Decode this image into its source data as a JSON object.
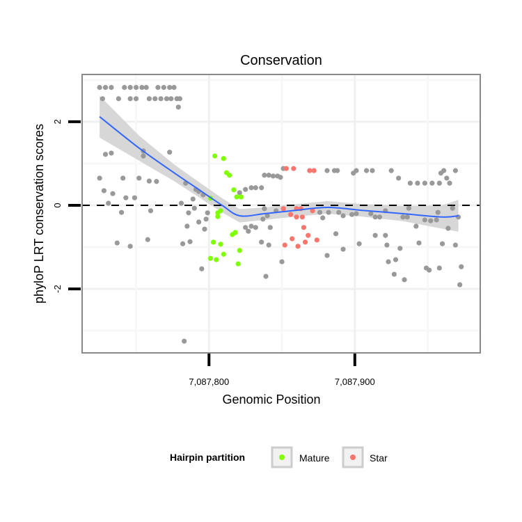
{
  "chart_data": {
    "type": "scatter",
    "title": "Conservation",
    "xlabel": "Genomic Position",
    "ylabel": "phyloP LRT conservation scores",
    "xlim": [
      7087713,
      7087986
    ],
    "ylim": [
      -3.53,
      3.13
    ],
    "x_ticks": [
      {
        "value": 7087800,
        "label": "7,087,800"
      },
      {
        "value": 7087900,
        "label": "7,087,900"
      }
    ],
    "y_ticks": [
      {
        "value": -2,
        "label": "-2"
      },
      {
        "value": 0,
        "label": "0"
      },
      {
        "value": 2,
        "label": "2"
      }
    ],
    "grid": true,
    "reference_line": {
      "y": 0,
      "style": "dashed"
    },
    "legend": {
      "title": "Hairpin partition",
      "placement": "bottom",
      "entries": [
        {
          "name": "Mature",
          "color": "#80ff00"
        },
        {
          "name": "Star",
          "color": "#f8766d"
        }
      ]
    },
    "colors": {
      "other": "#999999",
      "Mature": "#80ff00",
      "Star": "#f8766d",
      "smooth": "#3366ff",
      "ribbon": "#d3d3d3"
    },
    "series": [
      {
        "name": "Other",
        "points": [
          [
            7087725,
            2.82
          ],
          [
            7087729,
            2.82
          ],
          [
            7087733,
            2.82
          ],
          [
            7087742,
            2.82
          ],
          [
            7087746,
            2.82
          ],
          [
            7087750,
            2.82
          ],
          [
            7087754,
            2.82
          ],
          [
            7087757,
            2.82
          ],
          [
            7087765,
            2.82
          ],
          [
            7087769,
            2.82
          ],
          [
            7087773,
            2.82
          ],
          [
            7087776,
            2.82
          ],
          [
            7087727,
            2.55
          ],
          [
            7087738,
            2.55
          ],
          [
            7087746,
            2.55
          ],
          [
            7087750,
            2.55
          ],
          [
            7087759,
            2.55
          ],
          [
            7087763,
            2.55
          ],
          [
            7087767,
            2.55
          ],
          [
            7087771,
            2.55
          ],
          [
            7087774,
            2.55
          ],
          [
            7087778,
            2.55
          ],
          [
            7087780,
            2.55
          ],
          [
            7087779,
            2.35
          ],
          [
            7087729,
            1.22
          ],
          [
            7087733,
            1.25
          ],
          [
            7087755,
            1.3
          ],
          [
            7087773,
            1.27
          ],
          [
            7087755,
            1.18
          ],
          [
            7087725,
            0.65
          ],
          [
            7087741,
            0.65
          ],
          [
            7087752,
            0.65
          ],
          [
            7087759,
            0.58
          ],
          [
            7087764,
            0.57
          ],
          [
            7087784,
            0.53
          ],
          [
            7087728,
            0.35
          ],
          [
            7087734,
            0.28
          ],
          [
            7087743,
            0.18
          ],
          [
            7087749,
            0.18
          ],
          [
            7087731,
            0.05
          ],
          [
            7087781,
            0.05
          ],
          [
            7087740,
            -0.17
          ],
          [
            7087760,
            -0.13
          ],
          [
            7087789,
            0.15
          ],
          [
            7087791,
            0.38
          ],
          [
            7087793,
            0.33
          ],
          [
            7087796,
            0.25
          ],
          [
            7087790,
            -0.07
          ],
          [
            7087786,
            -0.18
          ],
          [
            7087799,
            -0.18
          ],
          [
            7087798,
            -0.33
          ],
          [
            7087793,
            -0.4
          ],
          [
            7087785,
            -0.5
          ],
          [
            7087797,
            -0.57
          ],
          [
            7087737,
            -0.9
          ],
          [
            7087746,
            -0.98
          ],
          [
            7087758,
            -0.82
          ],
          [
            7087782,
            -0.92
          ],
          [
            7087787,
            -0.87
          ],
          [
            7087795,
            -1.52
          ],
          [
            7087783,
            -3.25
          ],
          [
            7087838,
            0.72
          ],
          [
            7087841,
            0.72
          ],
          [
            7087844,
            0.7
          ],
          [
            7087847,
            0.7
          ],
          [
            7087849,
            0.67
          ],
          [
            7087851,
            0.88
          ],
          [
            7087821,
            0.3
          ],
          [
            7087825,
            0.38
          ],
          [
            7087829,
            0.42
          ],
          [
            7087832,
            0.42
          ],
          [
            7087836,
            0.42
          ],
          [
            7087825,
            -0.53
          ],
          [
            7087829,
            -0.5
          ],
          [
            7087832,
            -0.53
          ],
          [
            7087827,
            -0.62
          ],
          [
            7087842,
            -0.53
          ],
          [
            7087836,
            -0.88
          ],
          [
            7087841,
            -0.95
          ],
          [
            7087850,
            -1.35
          ],
          [
            7087839,
            -1.7
          ],
          [
            7087838,
            -0.08
          ],
          [
            7087840,
            -0.25
          ],
          [
            7087837,
            -0.33
          ],
          [
            7087846,
            -0.13
          ],
          [
            7087881,
            -1.2
          ],
          [
            7087887,
            -0.68
          ],
          [
            7087876,
            -0.17
          ],
          [
            7087878,
            -0.3
          ],
          [
            7087882,
            -0.17
          ],
          [
            7087881,
            0.83
          ],
          [
            7087886,
            0.83
          ],
          [
            7087888,
            0.83
          ],
          [
            7087901,
            0.83
          ],
          [
            7087908,
            0.83
          ],
          [
            7087912,
            0.83
          ],
          [
            7087925,
            0.83
          ],
          [
            7087961,
            0.83
          ],
          [
            7087969,
            0.83
          ],
          [
            7087899,
            0.77
          ],
          [
            7087959,
            0.77
          ],
          [
            7087930,
            0.65
          ],
          [
            7087963,
            0.65
          ],
          [
            7087965,
            0.53
          ],
          [
            7087938,
            0.53
          ],
          [
            7087943,
            0.53
          ],
          [
            7087948,
            0.53
          ],
          [
            7087953,
            0.53
          ],
          [
            7087958,
            0.53
          ],
          [
            7087937,
            -0.07
          ],
          [
            7087967,
            -0.07
          ],
          [
            7087889,
            -0.17
          ],
          [
            7087892,
            -0.25
          ],
          [
            7087898,
            -0.22
          ],
          [
            7087901,
            -0.2
          ],
          [
            7087911,
            -0.2
          ],
          [
            7087914,
            -0.28
          ],
          [
            7087917,
            -0.28
          ],
          [
            7087921,
            -0.13
          ],
          [
            7087933,
            -0.28
          ],
          [
            7087936,
            -0.28
          ],
          [
            7087948,
            -0.35
          ],
          [
            7087952,
            -0.37
          ],
          [
            7087956,
            -0.35
          ],
          [
            7087957,
            -0.17
          ],
          [
            7087971,
            -0.28
          ],
          [
            7087942,
            -0.5
          ],
          [
            7087964,
            -0.55
          ],
          [
            7087914,
            -0.72
          ],
          [
            7087921,
            -0.72
          ],
          [
            7087903,
            -0.92
          ],
          [
            7087922,
            -0.95
          ],
          [
            7087931,
            -1.03
          ],
          [
            7087944,
            -0.9
          ],
          [
            7087960,
            -0.92
          ],
          [
            7087969,
            -0.95
          ],
          [
            7087892,
            -1.05
          ],
          [
            7087923,
            -1.35
          ],
          [
            7087928,
            -1.3
          ],
          [
            7087927,
            -1.65
          ],
          [
            7087934,
            -1.78
          ],
          [
            7087949,
            -1.5
          ],
          [
            7087951,
            -1.55
          ],
          [
            7087958,
            -1.5
          ],
          [
            7087973,
            -1.47
          ],
          [
            7087972,
            -1.9
          ]
        ]
      },
      {
        "name": "Mature",
        "points": [
          [
            7087804,
            1.18
          ],
          [
            7087810,
            1.12
          ],
          [
            7087812,
            0.78
          ],
          [
            7087814,
            0.72
          ],
          [
            7087817,
            0.37
          ],
          [
            7087819,
            0.2
          ],
          [
            7087822,
            0.2
          ],
          [
            7087801,
            0.17
          ],
          [
            7087806,
            -0.18
          ],
          [
            7087808,
            -0.13
          ],
          [
            7087806,
            -0.27
          ],
          [
            7087816,
            -0.7
          ],
          [
            7087818,
            -0.65
          ],
          [
            7087803,
            -0.88
          ],
          [
            7087808,
            -0.93
          ],
          [
            7087810,
            -1.17
          ],
          [
            7087821,
            -1.08
          ],
          [
            7087801,
            -1.27
          ],
          [
            7087805,
            -1.3
          ],
          [
            7087820,
            -1.4
          ]
        ]
      },
      {
        "name": "Star",
        "points": [
          [
            7087853,
            0.88
          ],
          [
            7087858,
            0.88
          ],
          [
            7087869,
            0.83
          ],
          [
            7087872,
            0.83
          ],
          [
            7087851,
            -0.08
          ],
          [
            7087856,
            -0.22
          ],
          [
            7087860,
            -0.08
          ],
          [
            7087863,
            -0.08
          ],
          [
            7087860,
            -0.28
          ],
          [
            7087864,
            -0.28
          ],
          [
            7087871,
            -0.13
          ],
          [
            7087865,
            -0.53
          ],
          [
            7087868,
            -0.72
          ],
          [
            7087857,
            -0.8
          ],
          [
            7087874,
            -0.83
          ],
          [
            7087852,
            -0.95
          ],
          [
            7087861,
            -0.98
          ],
          [
            7087866,
            -0.88
          ]
        ]
      }
    ],
    "smooth": {
      "method": "loess",
      "x": [
        7087725,
        7087752,
        7087776,
        7087795,
        7087809,
        7087821,
        7087838,
        7087857,
        7087881,
        7087905,
        7087933,
        7087960,
        7087971
      ],
      "y": [
        2.12,
        1.37,
        0.78,
        0.33,
        0.0,
        -0.25,
        -0.2,
        -0.13,
        -0.05,
        -0.12,
        -0.2,
        -0.28,
        -0.25
      ],
      "se": [
        0.5,
        0.3,
        0.2,
        0.18,
        0.17,
        0.16,
        0.15,
        0.15,
        0.15,
        0.15,
        0.18,
        0.28,
        0.38
      ]
    }
  }
}
